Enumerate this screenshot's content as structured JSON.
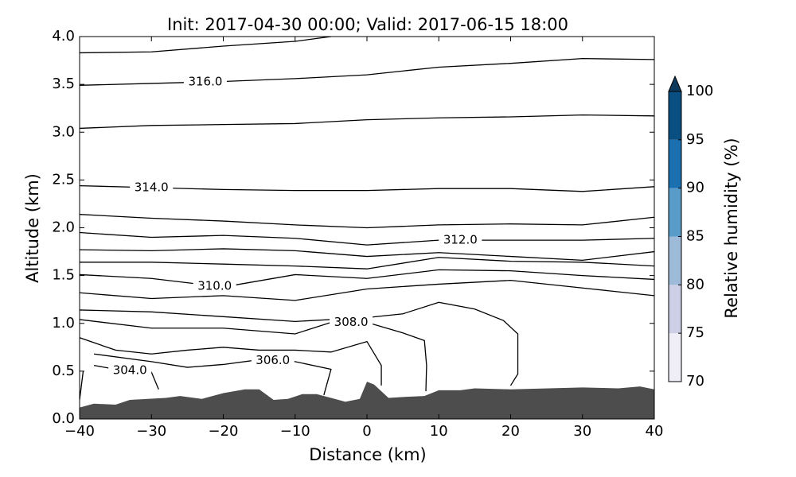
{
  "chart_data": {
    "type": "contour",
    "title": "Init: 2017-04-30 00:00; Valid: 2017-06-15 18:00",
    "xlabel": "Distance (km)",
    "ylabel": "Altitude (km)",
    "xlim": [
      -40,
      40
    ],
    "ylim": [
      0,
      4
    ],
    "xticks": [
      {
        "value": -40,
        "label": "−40"
      },
      {
        "value": -30,
        "label": "−30"
      },
      {
        "value": -20,
        "label": "−20"
      },
      {
        "value": -10,
        "label": "−10"
      },
      0,
      10,
      20,
      30,
      40
    ],
    "yticks": [
      {
        "value": 0,
        "label": "0.0"
      },
      0.5,
      {
        "value": 1,
        "label": "1.0"
      },
      1.5,
      {
        "value": 2,
        "label": "2.0"
      },
      2.5,
      {
        "value": 3,
        "label": "3.0"
      },
      3.5,
      {
        "value": 4,
        "label": "4.0"
      }
    ],
    "terrain": {
      "color": "#4d4d4d",
      "x": [
        -40,
        -38,
        -35,
        -33,
        -28,
        -26,
        -23,
        -20,
        -17,
        -15,
        -13,
        -11,
        -9,
        -7,
        -5,
        -3,
        -1,
        0,
        1,
        3,
        5,
        8,
        10,
        13,
        15,
        20,
        30,
        35,
        38,
        40
      ],
      "y": [
        0.12,
        0.16,
        0.15,
        0.2,
        0.22,
        0.24,
        0.21,
        0.27,
        0.31,
        0.31,
        0.2,
        0.21,
        0.26,
        0.26,
        0.22,
        0.18,
        0.21,
        0.39,
        0.36,
        0.22,
        0.23,
        0.24,
        0.3,
        0.3,
        0.32,
        0.31,
        0.33,
        0.32,
        0.34,
        0.31
      ]
    },
    "contour_color": "#000000",
    "contours": [
      {
        "x": [
          -40,
          -30,
          -20,
          -10,
          -5
        ],
        "y": [
          3.83,
          3.84,
          3.9,
          3.95,
          4.0
        ]
      },
      {
        "label": "316.0",
        "x": [
          -40,
          -30,
          -20,
          -10,
          0,
          10,
          20,
          30,
          40
        ],
        "y": [
          3.49,
          3.51,
          3.53,
          3.56,
          3.6,
          3.68,
          3.72,
          3.77,
          3.76
        ]
      },
      {
        "x": [
          -40,
          -30,
          -20,
          -10,
          0,
          10,
          20,
          30,
          40
        ],
        "y": [
          3.04,
          3.07,
          3.08,
          3.09,
          3.13,
          3.15,
          3.16,
          3.18,
          3.17
        ]
      },
      {
        "label": "314.0",
        "x": [
          -40,
          -30,
          -20,
          -10,
          0,
          10,
          20,
          30,
          40
        ],
        "y": [
          2.44,
          2.42,
          2.4,
          2.39,
          2.39,
          2.41,
          2.41,
          2.38,
          2.43
        ]
      },
      {
        "x": [
          -40,
          -30,
          -20,
          -10,
          0,
          10,
          20,
          30,
          40
        ],
        "y": [
          2.14,
          2.1,
          2.07,
          2.03,
          2.0,
          2.03,
          2.04,
          2.03,
          2.11
        ]
      },
      {
        "label": "312.0",
        "x": [
          -40,
          -30,
          -20,
          -10,
          0,
          10,
          20,
          30,
          40
        ],
        "y": [
          1.95,
          1.9,
          1.92,
          1.89,
          1.82,
          1.87,
          1.87,
          1.87,
          1.89
        ]
      },
      {
        "x": [
          -40,
          -30,
          -20,
          -10,
          0,
          10,
          20,
          30,
          40
        ],
        "y": [
          1.77,
          1.76,
          1.78,
          1.76,
          1.7,
          1.74,
          1.7,
          1.66,
          1.75
        ]
      },
      {
        "x": [
          -40,
          -30,
          -20,
          -10,
          0,
          10,
          20,
          30,
          40
        ],
        "y": [
          1.64,
          1.64,
          1.62,
          1.6,
          1.57,
          1.69,
          1.65,
          1.64,
          1.6
        ]
      },
      {
        "label": "310.0",
        "x": [
          -40,
          -30,
          -20,
          -10,
          0,
          10,
          20,
          30,
          40
        ],
        "y": [
          1.51,
          1.47,
          1.38,
          1.51,
          1.47,
          1.56,
          1.55,
          1.5,
          1.46
        ]
      },
      {
        "x": [
          -40,
          -30,
          -20,
          -10,
          0,
          10,
          20,
          30,
          40
        ],
        "y": [
          1.32,
          1.26,
          1.29,
          1.24,
          1.36,
          1.41,
          1.45,
          1.37,
          1.29
        ]
      },
      {
        "x": [
          -40,
          -30,
          -20,
          -10,
          0,
          5,
          10,
          15,
          19,
          21,
          21,
          20
        ],
        "y": [
          1.14,
          1.12,
          1.07,
          1.02,
          1.06,
          1.1,
          1.22,
          1.15,
          1.03,
          0.89,
          0.47,
          0.35
        ]
      },
      {
        "label": "308.0",
        "x": [
          -40,
          -30,
          -20,
          -10,
          -5,
          0,
          5,
          8,
          8.3,
          8.2
        ],
        "y": [
          1.04,
          0.95,
          0.95,
          0.89,
          1.01,
          1.01,
          0.9,
          0.82,
          0.56,
          0.29
        ]
      },
      {
        "x": [
          -40,
          -35,
          -30,
          -25,
          -20,
          -15,
          -10,
          -5,
          0,
          2,
          2
        ],
        "y": [
          0.85,
          0.72,
          0.68,
          0.72,
          0.75,
          0.72,
          0.72,
          0.7,
          0.81,
          0.56,
          0.35
        ]
      },
      {
        "label": "306.0",
        "x": [
          -38,
          -30,
          -25,
          -20,
          -15,
          -10,
          -5,
          -6
        ],
        "y": [
          0.68,
          0.6,
          0.54,
          0.57,
          0.62,
          0.6,
          0.52,
          0.25
        ]
      },
      {
        "label": "304.0",
        "x": [
          -38,
          -35,
          -30,
          -29
        ],
        "y": [
          0.56,
          0.52,
          0.49,
          0.31
        ]
      },
      {
        "x": [
          -40,
          -39.5
        ],
        "y": [
          0.2,
          0.5
        ]
      }
    ],
    "colorbar": {
      "label": "Relative humidity (%)",
      "lim": [
        70,
        100
      ],
      "ticks": [
        70,
        75,
        80,
        85,
        90,
        95,
        100
      ],
      "colors": [
        "#efedf5",
        "#cccfe6",
        "#9ebad9",
        "#5a9cc9",
        "#1a70b0",
        "#0a4f82"
      ],
      "extend_color": "#0d3a5c"
    }
  }
}
